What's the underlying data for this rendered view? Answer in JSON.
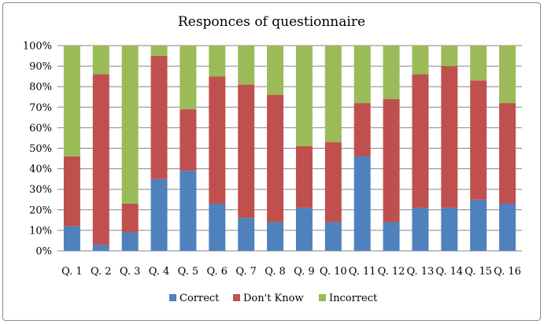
{
  "chart_data": {
    "type": "bar",
    "stacked": true,
    "percent_stacked": true,
    "title": "Responces of questionnaire",
    "categories": [
      "Q. 1",
      "Q. 2",
      "Q. 3",
      "Q. 4",
      "Q. 5",
      "Q. 6",
      "Q. 7",
      "Q. 8",
      "Q. 9",
      "Q. 10",
      "Q. 11",
      "Q. 12",
      "Q. 13",
      "Q. 14",
      "Q. 15",
      "Q. 16"
    ],
    "series": [
      {
        "name": "Correct",
        "color": "#4f81bd",
        "values": [
          12,
          3,
          9,
          35,
          39,
          23,
          16,
          14,
          21,
          14,
          46,
          14,
          21,
          21,
          25,
          23
        ]
      },
      {
        "name": "Don't Know",
        "color": "#c0504d",
        "values": [
          34,
          83,
          14,
          60,
          30,
          62,
          65,
          62,
          30,
          39,
          26,
          60,
          65,
          69,
          58,
          49
        ]
      },
      {
        "name": "Incorrect",
        "color": "#9bbb59",
        "values": [
          54,
          14,
          77,
          5,
          31,
          15,
          19,
          24,
          49,
          47,
          28,
          26,
          14,
          10,
          17,
          28
        ]
      }
    ],
    "ylim": [
      0,
      100
    ],
    "yticks": [
      "0%",
      "10%",
      "20%",
      "30%",
      "40%",
      "50%",
      "60%",
      "70%",
      "80%",
      "90%",
      "100%"
    ],
    "grid": true,
    "legend_position": "bottom"
  }
}
